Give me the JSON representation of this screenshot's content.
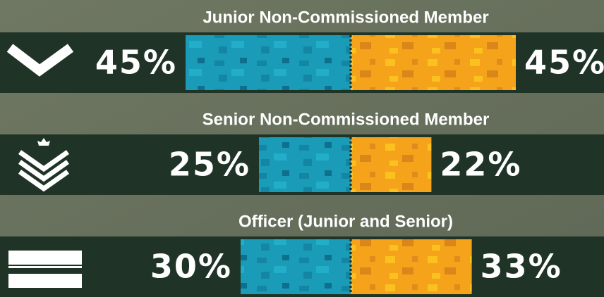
{
  "chart_data": {
    "type": "butterfly",
    "categories": [
      "Junior Non-Commissioned Member",
      "Senior Non-Commissioned Member",
      "Officer (Junior and Senior)"
    ],
    "series": [
      {
        "color": "#1a9cb8",
        "values": [
          45,
          25,
          30
        ],
        "value_labels": [
          "45%",
          "25%",
          "30%"
        ]
      },
      {
        "color": "#f5a31a",
        "values": [
          45,
          22,
          33
        ],
        "value_labels": [
          "45%",
          "22%",
          "33%"
        ]
      }
    ]
  }
}
